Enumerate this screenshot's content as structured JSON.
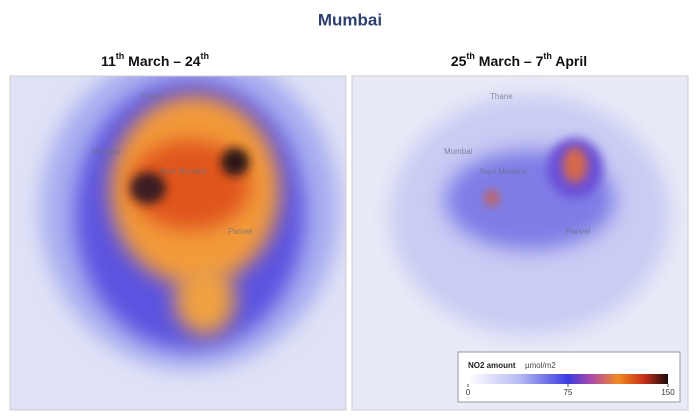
{
  "title": "Mumbai",
  "panels": [
    {
      "title": [
        "11",
        "th",
        " March – 24",
        "th"
      ]
    },
    {
      "title": [
        "25",
        "th",
        " March – 7",
        "th",
        " April"
      ]
    }
  ],
  "map_labels": [
    "Thane",
    "Mumbai",
    "Navi Mumbai",
    "Panvel"
  ],
  "legend": {
    "label": "NO2 amount",
    "unit": "µmol/m2",
    "range": [
      0,
      150
    ],
    "ticks": [
      0,
      75,
      150
    ]
  }
}
